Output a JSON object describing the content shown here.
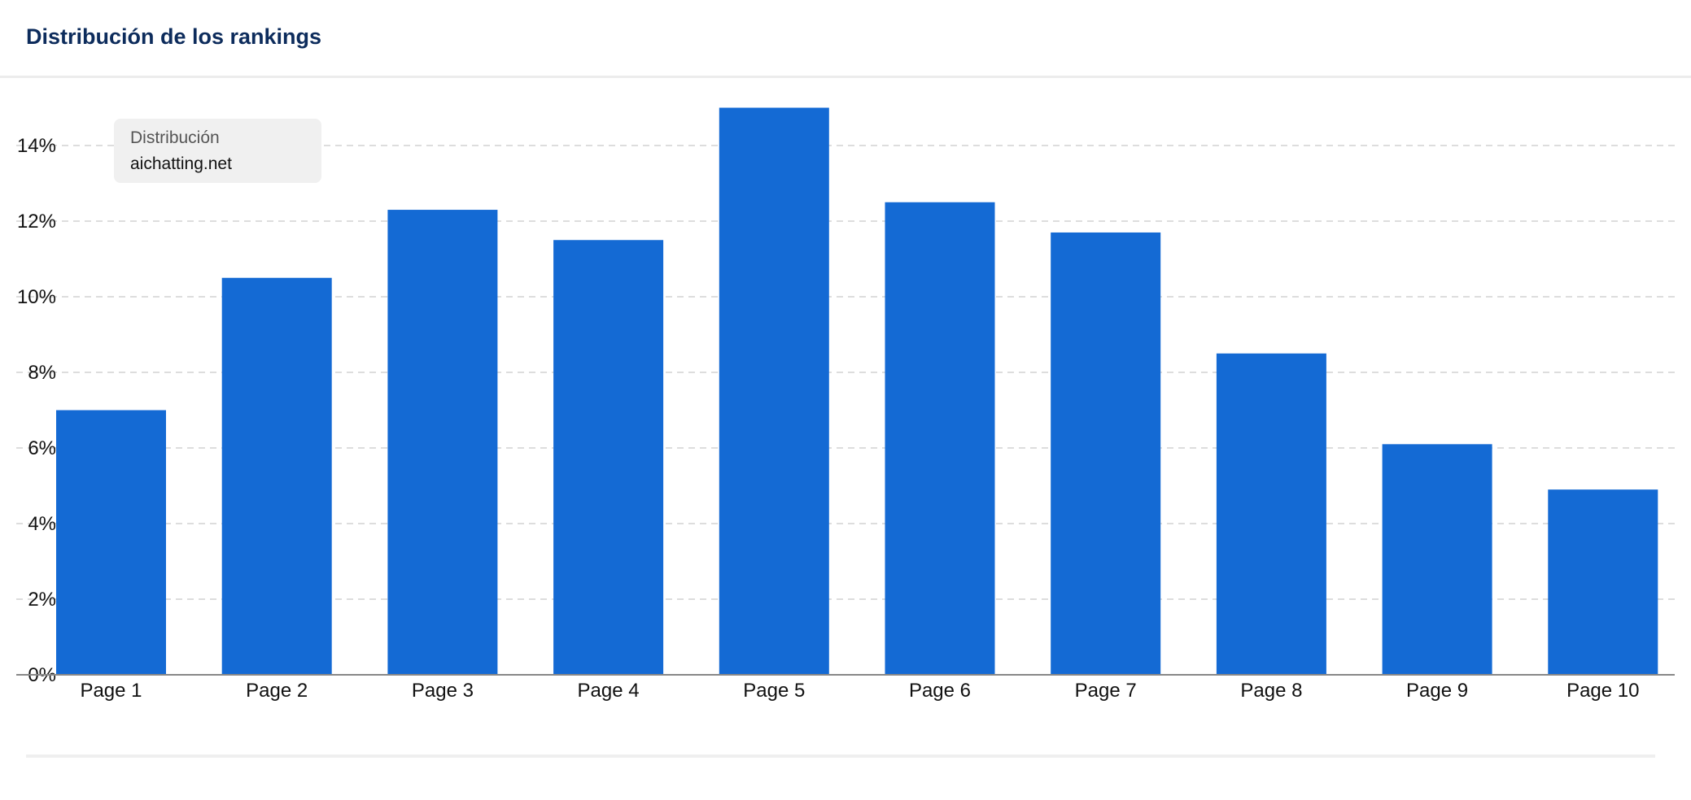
{
  "header": {
    "title": "Distribución de los rankings"
  },
  "tooltip": {
    "label": "Distribución",
    "value": "aichatting.net"
  },
  "colors": {
    "bar": "#146AD4",
    "title": "#0D2C5C",
    "grid": "#DDDDDD"
  },
  "chart_data": {
    "type": "bar",
    "title": "",
    "xlabel": "",
    "ylabel": "",
    "categories": [
      "Page 1",
      "Page 2",
      "Page 3",
      "Page 4",
      "Page 5",
      "Page 6",
      "Page 7",
      "Page 8",
      "Page 9",
      "Page 10"
    ],
    "values": [
      7.0,
      10.5,
      12.3,
      11.5,
      15.0,
      12.5,
      11.7,
      8.5,
      6.1,
      4.9
    ],
    "unit": "%",
    "ylim": [
      0,
      15
    ],
    "yticks": [
      0,
      2,
      4,
      6,
      8,
      10,
      12,
      14
    ],
    "ytick_labels": [
      "0%",
      "2%",
      "4%",
      "6%",
      "8%",
      "10%",
      "12%",
      "14%"
    ],
    "grid": true,
    "legend": "none"
  }
}
